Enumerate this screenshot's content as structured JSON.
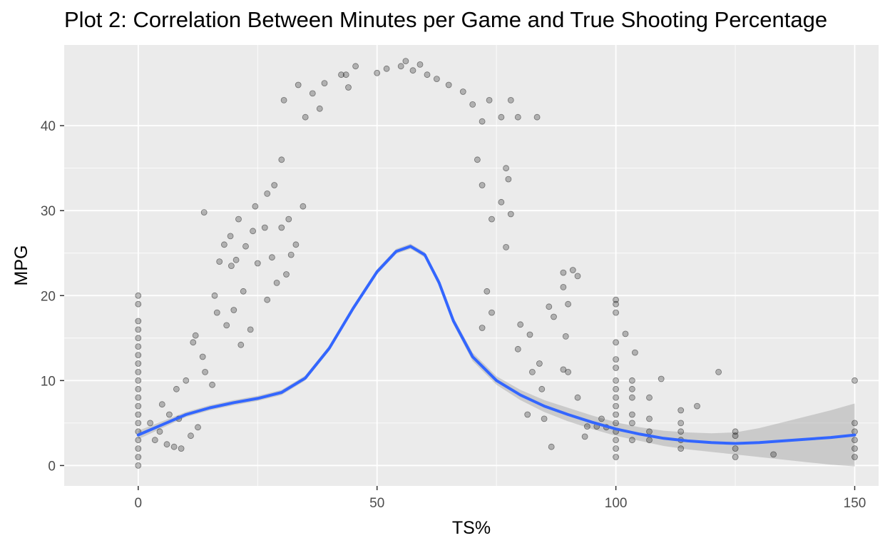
{
  "chart_data": {
    "type": "scatter",
    "title": "Plot 2: Correlation Between Minutes per Game and True Shooting Percentage",
    "xlabel": "TS%",
    "ylabel": "MPG",
    "xlim": [
      -15.5,
      155
    ],
    "ylim": [
      -2.4,
      49.5
    ],
    "x_ticks": [
      0,
      50,
      100,
      150
    ],
    "y_ticks": [
      0,
      10,
      20,
      30,
      40
    ],
    "x_tick_labels": [
      "0",
      "50",
      "100",
      "150"
    ],
    "y_tick_labels": [
      "0",
      "10",
      "20",
      "30",
      "40"
    ],
    "grid": true,
    "panel_background": "#ebebeb",
    "point_color": "#000000",
    "point_alpha": 0.25,
    "smooth": {
      "method": "loess",
      "color": "#3366ff",
      "ribbon_color": "#999999",
      "points": [
        {
          "x": 0,
          "y": 3.6,
          "lo": 3.1,
          "hi": 4.1
        },
        {
          "x": 5,
          "y": 4.8,
          "lo": 4.4,
          "hi": 5.2
        },
        {
          "x": 10,
          "y": 6.0,
          "lo": 5.7,
          "hi": 6.3
        },
        {
          "x": 15,
          "y": 6.8,
          "lo": 6.5,
          "hi": 7.1
        },
        {
          "x": 20,
          "y": 7.4,
          "lo": 7.1,
          "hi": 7.7
        },
        {
          "x": 25,
          "y": 7.9,
          "lo": 7.6,
          "hi": 8.2
        },
        {
          "x": 30,
          "y": 8.6,
          "lo": 8.3,
          "hi": 8.9
        },
        {
          "x": 35,
          "y": 10.3,
          "lo": 10.0,
          "hi": 10.6
        },
        {
          "x": 40,
          "y": 13.8,
          "lo": 13.5,
          "hi": 14.1
        },
        {
          "x": 45,
          "y": 18.5,
          "lo": 18.2,
          "hi": 18.8
        },
        {
          "x": 50,
          "y": 22.8,
          "lo": 22.5,
          "hi": 23.1
        },
        {
          "x": 54,
          "y": 25.2,
          "lo": 24.9,
          "hi": 25.5
        },
        {
          "x": 57,
          "y": 25.8,
          "lo": 25.5,
          "hi": 26.1
        },
        {
          "x": 60,
          "y": 24.8,
          "lo": 24.5,
          "hi": 25.1
        },
        {
          "x": 63,
          "y": 21.5,
          "lo": 21.1,
          "hi": 21.9
        },
        {
          "x": 66,
          "y": 17.0,
          "lo": 16.6,
          "hi": 17.4
        },
        {
          "x": 70,
          "y": 12.8,
          "lo": 12.3,
          "hi": 13.3
        },
        {
          "x": 75,
          "y": 10.0,
          "lo": 9.5,
          "hi": 10.5
        },
        {
          "x": 80,
          "y": 8.3,
          "lo": 7.7,
          "hi": 8.9
        },
        {
          "x": 85,
          "y": 7.0,
          "lo": 6.3,
          "hi": 7.7
        },
        {
          "x": 90,
          "y": 6.0,
          "lo": 5.2,
          "hi": 6.8
        },
        {
          "x": 95,
          "y": 5.1,
          "lo": 4.3,
          "hi": 5.9
        },
        {
          "x": 100,
          "y": 4.3,
          "lo": 3.5,
          "hi": 5.1
        },
        {
          "x": 105,
          "y": 3.7,
          "lo": 2.9,
          "hi": 4.5
        },
        {
          "x": 110,
          "y": 3.2,
          "lo": 2.3,
          "hi": 4.1
        },
        {
          "x": 115,
          "y": 2.9,
          "lo": 1.9,
          "hi": 3.9
        },
        {
          "x": 120,
          "y": 2.7,
          "lo": 1.6,
          "hi": 3.8
        },
        {
          "x": 125,
          "y": 2.6,
          "lo": 1.3,
          "hi": 3.9
        },
        {
          "x": 130,
          "y": 2.7,
          "lo": 1.0,
          "hi": 4.4
        },
        {
          "x": 135,
          "y": 2.9,
          "lo": 0.7,
          "hi": 5.1
        },
        {
          "x": 140,
          "y": 3.1,
          "lo": 0.4,
          "hi": 5.8
        },
        {
          "x": 145,
          "y": 3.3,
          "lo": 0.1,
          "hi": 6.5
        },
        {
          "x": 150,
          "y": 3.6,
          "lo": -0.1,
          "hi": 7.3
        }
      ]
    },
    "points": [
      [
        0,
        20.0
      ],
      [
        0,
        19.0
      ],
      [
        0,
        17.0
      ],
      [
        0,
        16.0
      ],
      [
        0,
        15.0
      ],
      [
        0,
        14.0
      ],
      [
        0,
        13.0
      ],
      [
        0,
        12.0
      ],
      [
        0,
        11.0
      ],
      [
        0,
        10.0
      ],
      [
        0,
        9.0
      ],
      [
        0,
        8.0
      ],
      [
        0,
        7.0
      ],
      [
        0,
        6.0
      ],
      [
        0,
        5.0
      ],
      [
        0,
        4.0
      ],
      [
        0,
        3.0
      ],
      [
        0,
        2.0
      ],
      [
        0,
        1.0
      ],
      [
        0,
        0.0
      ],
      [
        100,
        19.5
      ],
      [
        100,
        19.0
      ],
      [
        100,
        18.0
      ],
      [
        100,
        14.5
      ],
      [
        100,
        12.5
      ],
      [
        100,
        11.5
      ],
      [
        100,
        10.0
      ],
      [
        100,
        9.0
      ],
      [
        100,
        8.0
      ],
      [
        100,
        7.0
      ],
      [
        100,
        6.0
      ],
      [
        100,
        5.0
      ],
      [
        100,
        4.0
      ],
      [
        100,
        3.0
      ],
      [
        100,
        2.0
      ],
      [
        100,
        1.0
      ],
      [
        150,
        10.0
      ],
      [
        150,
        5.0
      ],
      [
        150,
        4.0
      ],
      [
        150,
        3.0
      ],
      [
        150,
        2.0
      ],
      [
        150,
        1.0
      ],
      [
        113.6,
        6.5
      ],
      [
        113.6,
        5.0
      ],
      [
        113.6,
        4.0
      ],
      [
        113.6,
        3.0
      ],
      [
        113.6,
        2.0
      ],
      [
        125,
        4.0
      ],
      [
        125,
        3.5
      ],
      [
        125,
        2.0
      ],
      [
        125,
        1.0
      ],
      [
        103.4,
        10.0
      ],
      [
        103.4,
        9.0
      ],
      [
        103.4,
        8.0
      ],
      [
        103.4,
        6.0
      ],
      [
        103.4,
        5.0
      ],
      [
        103.4,
        3.0
      ],
      [
        107,
        8.0
      ],
      [
        107,
        5.5
      ],
      [
        107,
        4.0
      ],
      [
        107,
        3.0
      ],
      [
        121.5,
        11.0
      ],
      [
        117,
        7.0
      ],
      [
        109.5,
        10.2
      ],
      [
        133,
        1.3
      ],
      [
        13.8,
        29.8
      ],
      [
        19.3,
        27.0
      ],
      [
        21.0,
        29.0
      ],
      [
        24.5,
        30.5
      ],
      [
        27.0,
        32.0
      ],
      [
        28.5,
        33.0
      ],
      [
        30.0,
        36.0
      ],
      [
        30.5,
        43.0
      ],
      [
        33.5,
        44.8
      ],
      [
        35.0,
        41.0
      ],
      [
        36.5,
        43.8
      ],
      [
        38.0,
        42.0
      ],
      [
        39.0,
        45.0
      ],
      [
        42.5,
        46.0
      ],
      [
        43.5,
        46.0
      ],
      [
        44.0,
        44.5
      ],
      [
        45.5,
        47.0
      ],
      [
        50.0,
        46.2
      ],
      [
        52.0,
        46.7
      ],
      [
        55.0,
        47.0
      ],
      [
        56.0,
        47.6
      ],
      [
        57.5,
        46.5
      ],
      [
        59.0,
        47.2
      ],
      [
        60.5,
        46.0
      ],
      [
        62.5,
        45.5
      ],
      [
        65.0,
        44.8
      ],
      [
        68.0,
        44.0
      ],
      [
        70.0,
        42.5
      ],
      [
        72.0,
        40.5
      ],
      [
        73.5,
        43.0
      ],
      [
        76.0,
        41.0
      ],
      [
        78.0,
        43.0
      ],
      [
        79.5,
        41.0
      ],
      [
        83.5,
        41.0
      ],
      [
        77.0,
        35.0
      ],
      [
        77.5,
        33.7
      ],
      [
        76.0,
        31.0
      ],
      [
        78.0,
        29.6
      ],
      [
        77.0,
        25.7
      ],
      [
        72.0,
        33.0
      ],
      [
        74.0,
        29.0
      ],
      [
        71.0,
        36.0
      ],
      [
        89.0,
        22.7
      ],
      [
        91.0,
        23.0
      ],
      [
        92.0,
        22.3
      ],
      [
        89.0,
        21.0
      ],
      [
        90.0,
        19.0
      ],
      [
        89.5,
        15.2
      ],
      [
        86.0,
        18.7
      ],
      [
        87.0,
        17.5
      ],
      [
        82.0,
        15.4
      ],
      [
        80.0,
        16.6
      ],
      [
        89.0,
        11.3
      ],
      [
        90.0,
        11.0
      ],
      [
        92.0,
        8.0
      ],
      [
        94.0,
        4.6
      ],
      [
        96.0,
        4.6
      ],
      [
        97.0,
        5.5
      ],
      [
        98.0,
        4.5
      ],
      [
        93.5,
        3.4
      ],
      [
        84.0,
        12.0
      ],
      [
        84.5,
        9.0
      ],
      [
        85.0,
        5.5
      ],
      [
        86.5,
        2.2
      ],
      [
        82.5,
        11.0
      ],
      [
        81.5,
        6.0
      ],
      [
        104.0,
        13.3
      ],
      [
        102.0,
        15.5
      ],
      [
        79.5,
        13.7
      ],
      [
        74.0,
        18.0
      ],
      [
        73.0,
        20.5
      ],
      [
        72.0,
        16.2
      ],
      [
        17.0,
        24.0
      ],
      [
        20.5,
        24.2
      ],
      [
        19.5,
        23.5
      ],
      [
        22.5,
        25.8
      ],
      [
        24.0,
        27.6
      ],
      [
        18.0,
        26.0
      ],
      [
        22.0,
        20.5
      ],
      [
        25.0,
        23.8
      ],
      [
        28.0,
        24.5
      ],
      [
        26.5,
        28.0
      ],
      [
        20.0,
        18.3
      ],
      [
        16.5,
        18.0
      ],
      [
        11.5,
        14.5
      ],
      [
        12.0,
        15.3
      ],
      [
        13.5,
        12.8
      ],
      [
        10.0,
        10.0
      ],
      [
        8.0,
        9.0
      ],
      [
        6.5,
        6.0
      ],
      [
        5.0,
        7.2
      ],
      [
        4.5,
        4.0
      ],
      [
        7.5,
        2.2
      ],
      [
        9.0,
        2.0
      ],
      [
        11.0,
        3.5
      ],
      [
        12.5,
        4.5
      ],
      [
        2.5,
        5.0
      ],
      [
        3.5,
        3.0
      ],
      [
        6.0,
        2.5
      ],
      [
        8.5,
        5.5
      ],
      [
        14.0,
        11.0
      ],
      [
        15.5,
        9.5
      ],
      [
        16.0,
        20.0
      ],
      [
        18.5,
        16.5
      ],
      [
        21.5,
        14.2
      ],
      [
        23.5,
        16.0
      ],
      [
        27.0,
        19.5
      ],
      [
        29.0,
        21.5
      ],
      [
        31.0,
        22.5
      ],
      [
        32.0,
        24.8
      ],
      [
        33.0,
        26.0
      ],
      [
        30.0,
        28.0
      ],
      [
        31.5,
        29.0
      ],
      [
        34.5,
        30.5
      ]
    ]
  }
}
